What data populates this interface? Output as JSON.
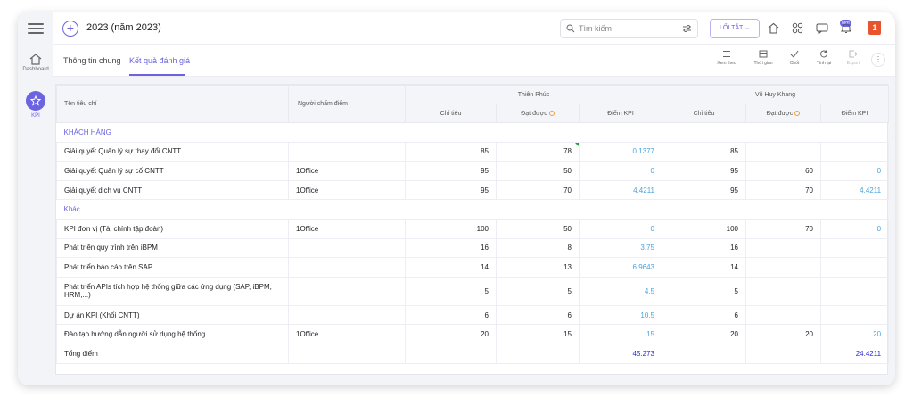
{
  "header": {
    "title": "2023 (năm 2023)",
    "search_placeholder": "Tìm kiếm",
    "shortcut_label": "LỐI TẮT",
    "new_badge": "Mới"
  },
  "sidebar": {
    "items": [
      {
        "label": "Dashboard",
        "icon": "home-icon"
      },
      {
        "label": "KPI",
        "icon": "star-icon"
      }
    ]
  },
  "tabs": [
    {
      "label": "Thông tin chung",
      "active": false
    },
    {
      "label": "Kết quả đánh giá",
      "active": true
    }
  ],
  "toolbar": [
    {
      "label": "Xem theo",
      "icon": "list-icon"
    },
    {
      "label": "Thời gian",
      "icon": "calendar-icon"
    },
    {
      "label": "Chốt",
      "icon": "check-icon"
    },
    {
      "label": "Tính lại",
      "icon": "refresh-icon"
    },
    {
      "label": "Export",
      "icon": "export-icon",
      "disabled": true
    }
  ],
  "table": {
    "col_criteria": "Tên tiêu chí",
    "col_grader": "Người chấm điểm",
    "groups": [
      "Thiên Phúc",
      "Võ Huy Khang"
    ],
    "sub_cols": [
      "Chỉ tiêu",
      "Đạt được",
      "Điểm KPI"
    ],
    "sections": [
      {
        "title": "KHÁCH HÀNG",
        "rows": [
          {
            "name": "Giải quyết Quản lý sự thay đổi CNTT",
            "grader": "",
            "a1": "85",
            "a2": "78",
            "a3": "0.1377",
            "b1": "85",
            "b2": "",
            "b3": ""
          },
          {
            "name": "Giải quyết Quản lý sự cố CNTT",
            "grader": "1Office",
            "a1": "95",
            "a2": "50",
            "a3": "0",
            "b1": "95",
            "b2": "60",
            "b3": "0"
          },
          {
            "name": "Giải quyết dịch vụ CNTT",
            "grader": "1Office",
            "a1": "95",
            "a2": "70",
            "a3": "4.4211",
            "b1": "95",
            "b2": "70",
            "b3": "4.4211"
          }
        ]
      },
      {
        "title": "Khác",
        "rows": [
          {
            "name": "KPI đơn vị (Tài chính tập đoàn)",
            "grader": "1Office",
            "a1": "100",
            "a2": "50",
            "a3": "0",
            "b1": "100",
            "b2": "70",
            "b3": "0"
          },
          {
            "name": "Phát triển quy trình trên iBPM",
            "grader": "",
            "a1": "16",
            "a2": "8",
            "a3": "3.75",
            "b1": "16",
            "b2": "",
            "b3": ""
          },
          {
            "name": "Phát triển báo cáo trên SAP",
            "grader": "",
            "a1": "14",
            "a2": "13",
            "a3": "6.9643",
            "b1": "14",
            "b2": "",
            "b3": ""
          },
          {
            "name": "Phát triển APIs tích hợp hệ thống giữa các ứng dụng (SAP, iBPM, HRM,...)",
            "grader": "",
            "a1": "5",
            "a2": "5",
            "a3": "4.5",
            "b1": "5",
            "b2": "",
            "b3": ""
          },
          {
            "name": "Dự án KPI (Khối CNTT)",
            "grader": "",
            "a1": "6",
            "a2": "6",
            "a3": "10.5",
            "b1": "6",
            "b2": "",
            "b3": ""
          },
          {
            "name": "Đào tạo hướng dẫn người sử dụng hệ thống",
            "grader": "1Office",
            "a1": "20",
            "a2": "15",
            "a3": "15",
            "b1": "20",
            "b2": "20",
            "b3": "20"
          }
        ]
      }
    ],
    "total": {
      "label": "Tổng điểm",
      "a3": "45.273",
      "b3": "24.4211"
    }
  },
  "colors": {
    "accent": "#6b63e0",
    "kpi_value": "#4aa3df",
    "kpi_total": "#2c2ad0",
    "brand_logo": "#e8552d"
  }
}
